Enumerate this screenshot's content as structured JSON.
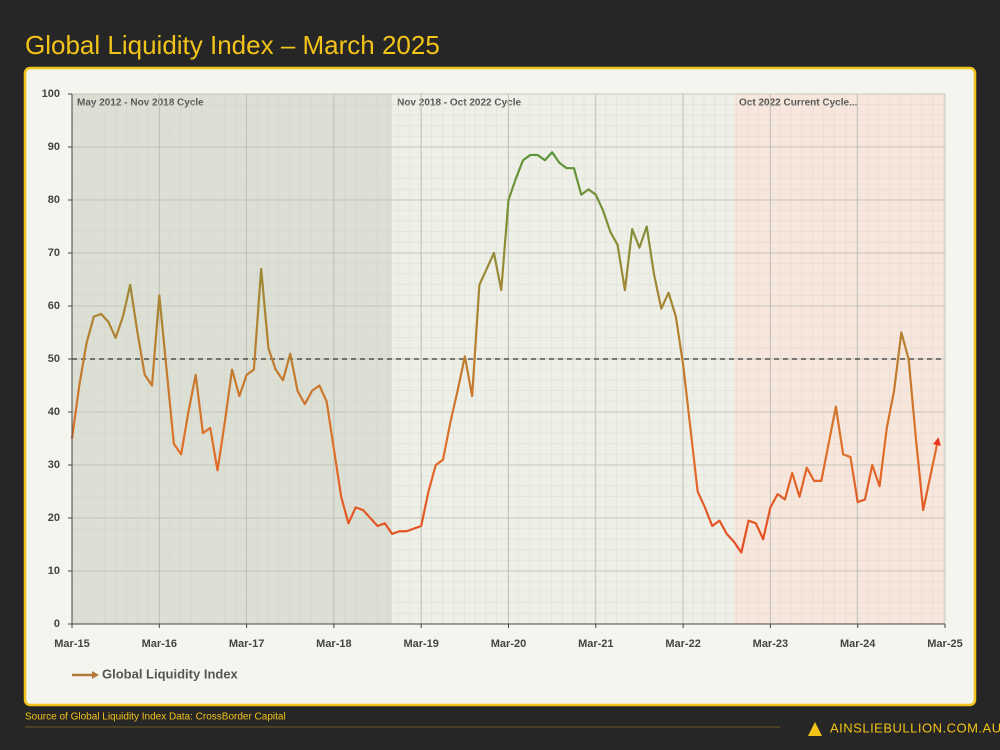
{
  "chart_data": {
    "type": "line",
    "title": "Global Liquidity Index – March 2025",
    "source": "Source of Global Liquidity Index Data: CrossBorder Capital",
    "brand": "AINSLIEBULLION.COM.AU",
    "x": [
      "2015-03",
      "2015-04",
      "2015-05",
      "2015-06",
      "2015-07",
      "2015-08",
      "2015-09",
      "2015-10",
      "2015-11",
      "2015-12",
      "2016-01",
      "2016-02",
      "2016-03",
      "2016-04",
      "2016-05",
      "2016-06",
      "2016-07",
      "2016-08",
      "2016-09",
      "2016-10",
      "2016-11",
      "2016-12",
      "2017-01",
      "2017-02",
      "2017-03",
      "2017-04",
      "2017-05",
      "2017-06",
      "2017-07",
      "2017-08",
      "2017-09",
      "2017-10",
      "2017-11",
      "2017-12",
      "2018-01",
      "2018-02",
      "2018-03",
      "2018-04",
      "2018-05",
      "2018-06",
      "2018-07",
      "2018-08",
      "2018-09",
      "2018-10",
      "2018-11",
      "2018-12",
      "2019-01",
      "2019-02",
      "2019-03",
      "2019-04",
      "2019-05",
      "2019-06",
      "2019-07",
      "2019-08",
      "2019-09",
      "2019-10",
      "2019-11",
      "2019-12",
      "2020-01",
      "2020-02",
      "2020-03",
      "2020-04",
      "2020-05",
      "2020-06",
      "2020-07",
      "2020-08",
      "2020-09",
      "2020-10",
      "2020-11",
      "2020-12",
      "2021-01",
      "2021-02",
      "2021-03",
      "2021-04",
      "2021-05",
      "2021-06",
      "2021-07",
      "2021-08",
      "2021-09",
      "2021-10",
      "2021-11",
      "2021-12",
      "2022-01",
      "2022-02",
      "2022-03",
      "2022-04",
      "2022-05",
      "2022-06",
      "2022-07",
      "2022-08",
      "2022-09",
      "2022-10",
      "2022-11",
      "2022-12",
      "2023-01",
      "2023-02",
      "2023-03",
      "2023-04",
      "2023-05",
      "2023-06",
      "2023-07",
      "2023-08",
      "2023-09",
      "2023-10",
      "2023-11",
      "2023-12",
      "2024-01",
      "2024-02",
      "2024-03",
      "2024-04",
      "2024-05",
      "2024-06",
      "2024-07",
      "2024-08",
      "2024-09",
      "2024-10",
      "2024-11",
      "2024-12",
      "2025-01",
      "2025-02"
    ],
    "series": [
      {
        "name": "Global Liquidity Index",
        "color": "#b07a3a",
        "colors": [
          "#3a9c3f",
          "#9a8a35",
          "#e0702a",
          "#e8321e"
        ],
        "values": [
          35,
          45,
          53,
          58,
          58.5,
          57,
          54,
          58,
          64,
          55,
          47,
          45,
          62,
          48,
          34,
          32,
          40,
          47,
          36,
          37,
          29,
          38,
          48,
          43,
          47,
          48,
          67,
          52,
          48,
          46,
          51,
          44,
          41.5,
          44,
          45,
          42,
          33,
          24,
          19,
          22,
          21.5,
          20,
          18.5,
          19,
          17,
          17.5,
          17.5,
          18,
          18.5,
          25,
          30,
          31,
          38,
          44,
          50.5,
          43,
          64,
          67,
          70,
          63,
          80,
          84,
          87.5,
          88.5,
          88.5,
          87.5,
          89,
          87,
          86,
          86,
          81,
          82,
          81,
          78,
          74,
          71.5,
          63,
          74.5,
          71,
          75,
          66,
          59.5,
          62.5,
          58,
          49,
          37,
          25,
          22,
          18.5,
          19.5,
          17,
          15.5,
          13.5,
          19.5,
          19,
          16,
          22,
          24.5,
          23.5,
          28.5,
          24,
          29.5,
          27,
          27,
          34,
          41,
          32,
          31.5,
          23,
          23.5,
          30,
          26,
          37,
          44,
          55,
          50,
          35,
          21.5,
          28,
          34.5
        ]
      }
    ],
    "bands": [
      {
        "label": "May 2012 - Nov 2018 Cycle",
        "start": "2012-05",
        "end": "2018-11",
        "color": "#dcdfd4"
      },
      {
        "label": "Nov 2018 - Oct 2022 Cycle",
        "start": "2018-11",
        "end": "2022-10",
        "color": "#eef0e8"
      },
      {
        "label": "Oct 2022 Current Cycle...",
        "start": "2022-10",
        "color": "#f6e6dc"
      }
    ],
    "reference_line": 50,
    "xlim": [
      "2015-03",
      "2025-03"
    ],
    "xticks": [
      {
        "value": "2015-03",
        "label": "Mar-15"
      },
      {
        "value": "2016-03",
        "label": "Mar-16"
      },
      {
        "value": "2017-03",
        "label": "Mar-17"
      },
      {
        "value": "2018-03",
        "label": "Mar-18"
      },
      {
        "value": "2019-03",
        "label": "Mar-19"
      },
      {
        "value": "2020-03",
        "label": "Mar-20"
      },
      {
        "value": "2021-03",
        "label": "Mar-21"
      },
      {
        "value": "2022-03",
        "label": "Mar-22"
      },
      {
        "value": "2023-03",
        "label": "Mar-23"
      },
      {
        "value": "2024-03",
        "label": "Mar-24"
      },
      {
        "value": "2025-03",
        "label": "Mar-25"
      }
    ],
    "ylim": [
      0,
      100
    ],
    "yticks": [
      0,
      10,
      20,
      30,
      40,
      50,
      60,
      70,
      80,
      90,
      100
    ],
    "grid": true
  }
}
